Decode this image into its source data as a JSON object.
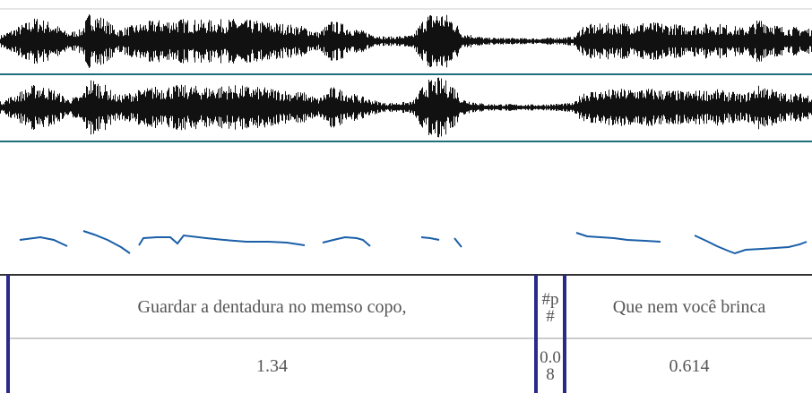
{
  "tier": {
    "intervals": [
      {
        "text": "Guardar a dentadura no memso copo,",
        "duration": "1.34"
      },
      {
        "text": "#p#",
        "duration": "0.08"
      },
      {
        "text": "Que nem você brinca",
        "duration": "0.614"
      }
    ]
  }
}
